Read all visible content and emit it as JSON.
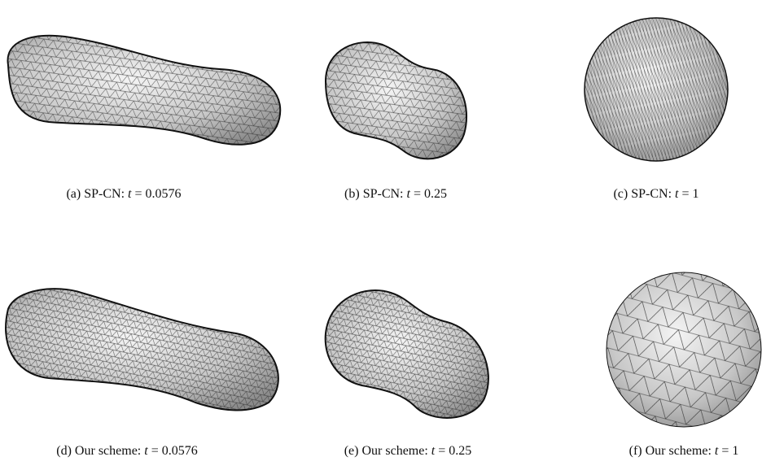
{
  "subfigures": [
    {
      "label": "(a)",
      "method": "SP-CN:",
      "variable": "t",
      "value": "= 0.0576"
    },
    {
      "label": "(b)",
      "method": "SP-CN:",
      "variable": "t",
      "value": "= 0.25"
    },
    {
      "label": "(c)",
      "method": "SP-CN:",
      "variable": "t",
      "value": "= 1"
    },
    {
      "label": "(d)",
      "method": "Our scheme:",
      "variable": "t",
      "value": "= 0.0576"
    },
    {
      "label": "(e)",
      "method": "Our scheme:",
      "variable": "t",
      "value": "= 0.25"
    },
    {
      "label": "(f)",
      "method": "Our scheme:",
      "variable": "t",
      "value": "= 1"
    }
  ]
}
